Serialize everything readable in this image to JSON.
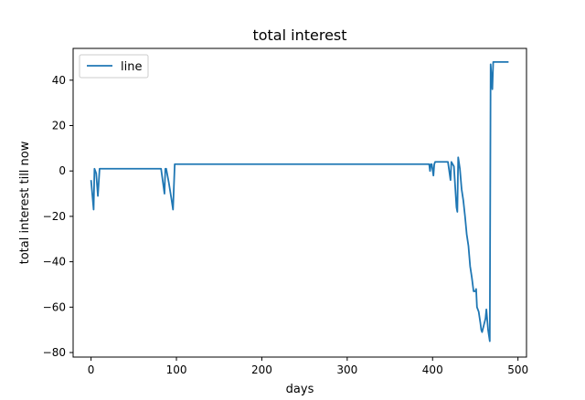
{
  "chart_data": {
    "type": "line",
    "title": "total interest",
    "xlabel": "days",
    "ylabel": "total interest till now",
    "xlim": [
      -21,
      510
    ],
    "ylim": [
      -82,
      54
    ],
    "xticks": [
      0,
      100,
      200,
      300,
      400,
      500
    ],
    "yticks": [
      -80,
      -60,
      -40,
      -20,
      0,
      20,
      40
    ],
    "xtick_labels": [
      "0",
      "100",
      "200",
      "300",
      "400",
      "500"
    ],
    "ytick_labels": [
      "−80",
      "−60",
      "−40",
      "−20",
      "0",
      "20",
      "40"
    ],
    "grid": false,
    "legend": {
      "position": "top-left",
      "entries": [
        "line"
      ]
    },
    "series": [
      {
        "name": "line",
        "color": "#1f77b4",
        "x": [
          0,
          3,
          4,
          6,
          8,
          10,
          82,
          86,
          87,
          88,
          91,
          94,
          96,
          98,
          396,
          397,
          398,
          399,
          401,
          402,
          403,
          418,
          421,
          422,
          425,
          428,
          429,
          430,
          432,
          434,
          436,
          438,
          440,
          442,
          444,
          446,
          448,
          450,
          451,
          452,
          454,
          456,
          457,
          458,
          460,
          462,
          463,
          465,
          467,
          468,
          470,
          471,
          472,
          474,
          476,
          478,
          480,
          489
        ],
        "y": [
          -4,
          -17,
          1,
          -1,
          -11,
          1,
          1,
          -10,
          1,
          1,
          -5,
          -12,
          -17,
          3,
          3,
          0,
          3,
          3,
          -2,
          3,
          4,
          4,
          -4,
          4,
          2,
          -16,
          -18,
          6,
          1,
          -8,
          -13,
          -20,
          -28,
          -33,
          -42,
          -47,
          -53,
          -53,
          -52,
          -60,
          -62,
          -67,
          -70,
          -71,
          -68,
          -65,
          -61,
          -70,
          -75,
          47,
          36,
          48,
          48,
          48,
          48,
          48,
          48,
          48
        ]
      }
    ]
  }
}
